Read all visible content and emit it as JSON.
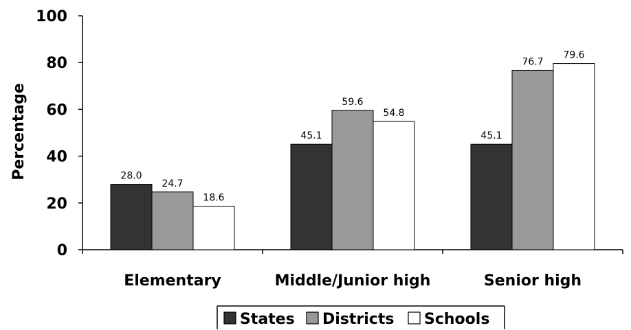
{
  "chart_data": {
    "type": "bar",
    "categories": [
      "Elementary",
      "Middle/Junior high",
      "Senior high"
    ],
    "series": [
      {
        "name": "States",
        "values": [
          28.0,
          45.1,
          45.1
        ],
        "color": "#333333"
      },
      {
        "name": "Districts",
        "values": [
          24.7,
          59.6,
          76.7
        ],
        "color": "#999999"
      },
      {
        "name": "Schools",
        "values": [
          18.6,
          54.8,
          79.6
        ],
        "color": "#ffffff"
      }
    ],
    "data_labels": [
      [
        "28.0",
        "45.1",
        "45.1"
      ],
      [
        "24.7",
        "59.6",
        "76.7"
      ],
      [
        "18.6",
        "54.8",
        "79.6"
      ]
    ],
    "ylabel": "Percentage",
    "xlabel": "",
    "ylim": [
      0,
      100
    ],
    "yticks": [
      0,
      20,
      40,
      60,
      80,
      100
    ],
    "grid": false,
    "legend_position": "bottom"
  }
}
